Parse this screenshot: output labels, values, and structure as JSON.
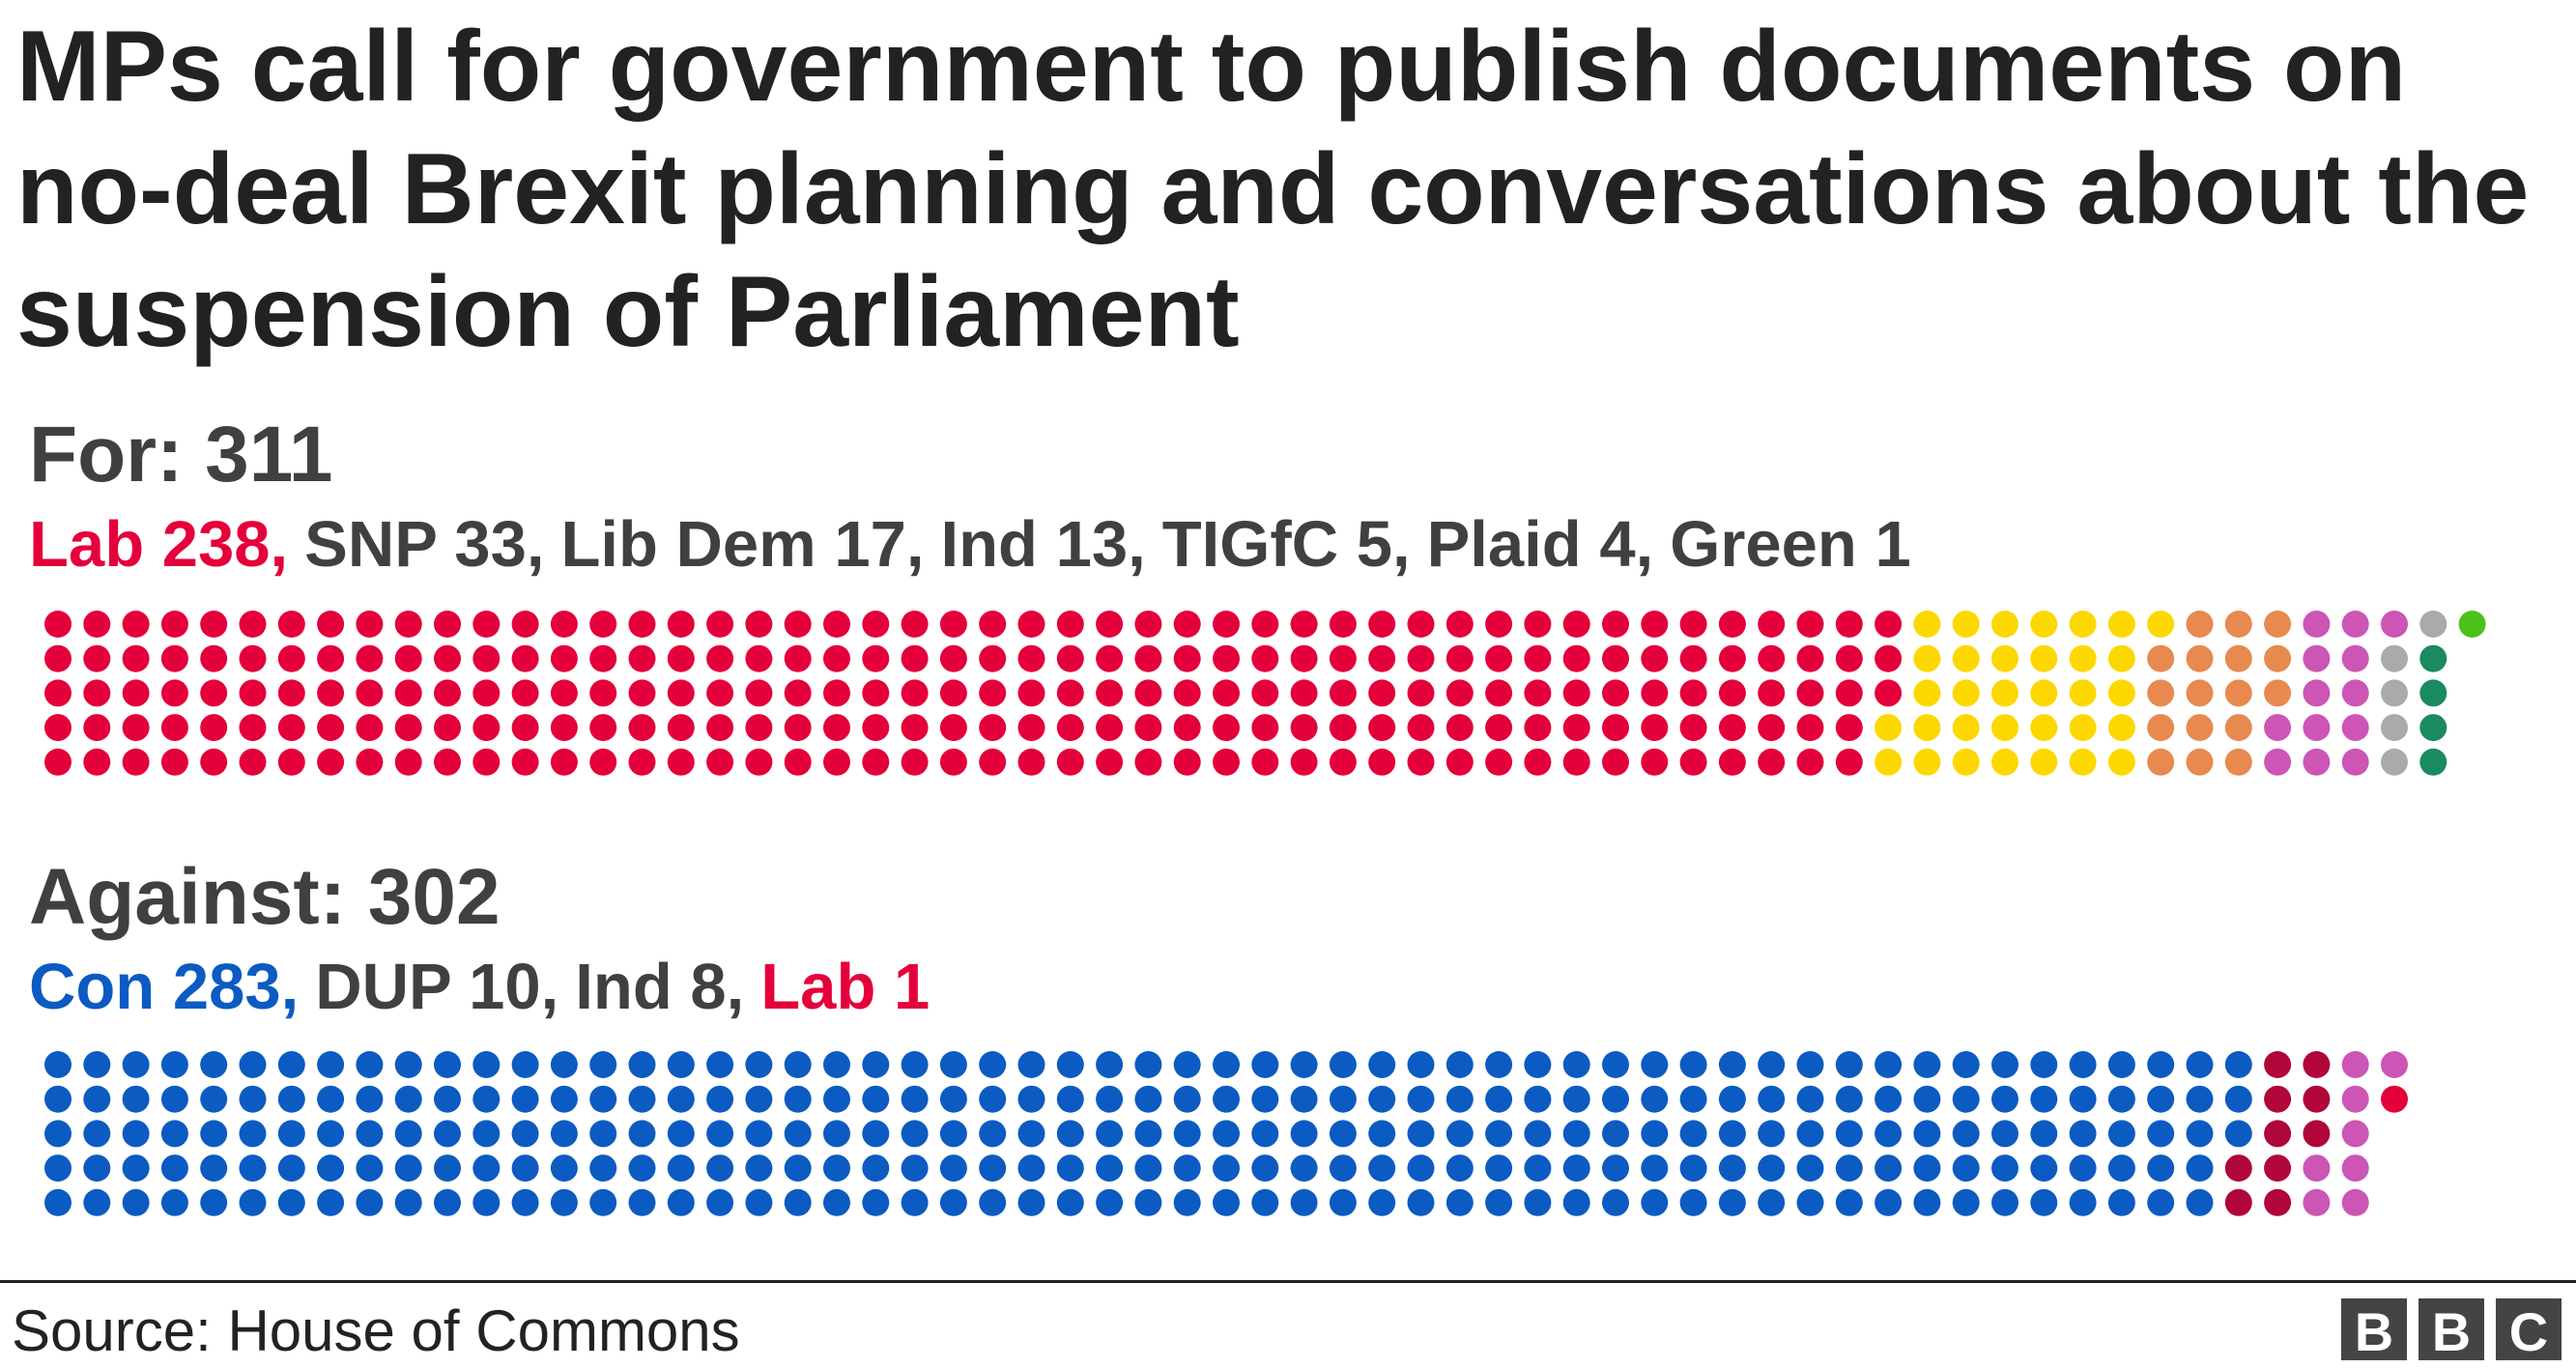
{
  "chart_data": {
    "type": "waffle",
    "title": "MPs call for government to publish documents on no-deal Brexit planning and conversations about the suspension of Parliament",
    "rows": 5,
    "groups": [
      {
        "heading": "For: 311",
        "total": 311,
        "series": [
          {
            "label": "Lab 238,",
            "value": 238,
            "color": "#e4003b",
            "label_color": "#e4003b"
          },
          {
            "label": "SNP 33,",
            "value": 33,
            "color": "#fdd800",
            "label_color": "#404040"
          },
          {
            "label": "Lib Dem 17,",
            "value": 17,
            "color": "#e8894f",
            "label_color": "#404040"
          },
          {
            "label": "Ind 13,",
            "value": 13,
            "color": "#cc55b5",
            "label_color": "#404040"
          },
          {
            "label": "TIGfC 5,",
            "value": 5,
            "color": "#aaaaaa",
            "label_color": "#404040"
          },
          {
            "label": "Plaid 4,",
            "value": 4,
            "color": "#1a8a5f",
            "label_color": "#404040"
          },
          {
            "label": "Green 1",
            "value": 1,
            "color": "#4bc21a",
            "label_color": "#404040"
          }
        ]
      },
      {
        "heading": "Against: 302",
        "total": 302,
        "series": [
          {
            "label": "Con 283,",
            "value": 283,
            "color": "#0b5bc2",
            "label_color": "#0b5bc2"
          },
          {
            "label": "DUP 10,",
            "value": 10,
            "color": "#b0063a",
            "label_color": "#404040"
          },
          {
            "label": "Ind 8,",
            "value": 8,
            "color": "#cc55b5",
            "label_color": "#404040"
          },
          {
            "label": "Lab 1",
            "value": 1,
            "color": "#e4003b",
            "label_color": "#e4003b"
          }
        ]
      }
    ],
    "source": "Source: House of Commons",
    "logo": [
      "B",
      "B",
      "C"
    ]
  }
}
